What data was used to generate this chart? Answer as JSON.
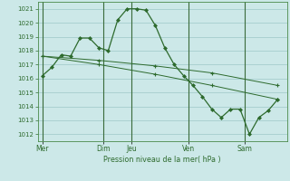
{
  "background_color": "#cce8e8",
  "grid_color": "#9ec8c8",
  "line_color": "#2d6a2d",
  "ylabel_text": "Pression niveau de la mer( hPa )",
  "ylim": [
    1011.5,
    1021.5
  ],
  "yticks": [
    1012,
    1013,
    1014,
    1015,
    1016,
    1017,
    1018,
    1019,
    1020,
    1021
  ],
  "series1_x": [
    0,
    1,
    2,
    3,
    4,
    5,
    6,
    7,
    8,
    9,
    10,
    11,
    12,
    13,
    14,
    15,
    16,
    17,
    18,
    19,
    20,
    21,
    22,
    23,
    24,
    25
  ],
  "series1_y": [
    1016.2,
    1016.8,
    1017.7,
    1017.6,
    1018.9,
    1018.9,
    1018.2,
    1018.0,
    1020.2,
    1021.0,
    1021.0,
    1020.9,
    1019.8,
    1018.2,
    1017.0,
    1016.2,
    1015.5,
    1014.7,
    1013.8,
    1013.2,
    1013.8,
    1013.8,
    1012.0,
    1013.2,
    1013.7,
    1014.5
  ],
  "series2_x": [
    0,
    6,
    12,
    18,
    25
  ],
  "series2_y": [
    1017.6,
    1017.3,
    1016.9,
    1016.4,
    1015.5
  ],
  "series3_x": [
    0,
    6,
    12,
    18,
    25
  ],
  "series3_y": [
    1017.6,
    1017.0,
    1016.3,
    1015.5,
    1014.5
  ],
  "vline_x": [
    0.0,
    6.5,
    9.5,
    15.5,
    21.5
  ],
  "xtick_positions": [
    0.0,
    6.5,
    9.5,
    15.5,
    21.5
  ],
  "xtick_labels": [
    "Mer",
    "Dim",
    "Jeu",
    "Ven",
    "Sam"
  ],
  "xlim": [
    -0.5,
    26.0
  ]
}
